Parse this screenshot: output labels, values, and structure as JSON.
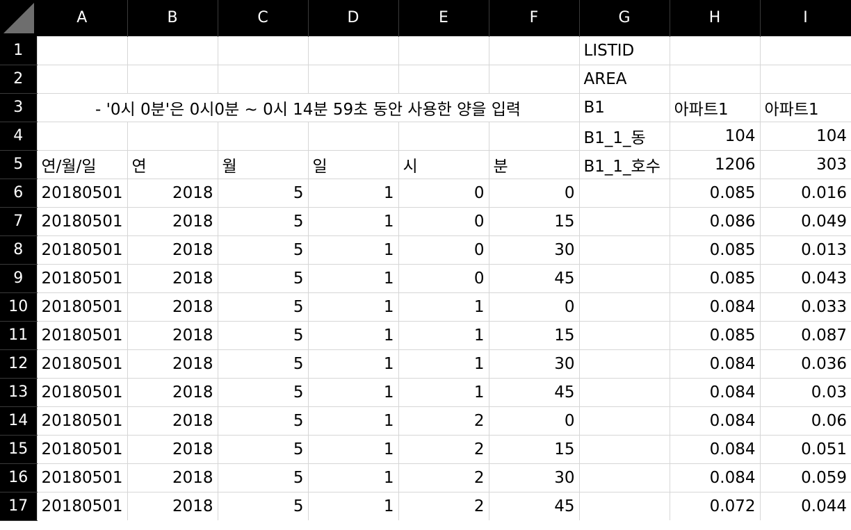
{
  "spreadsheet": {
    "columns": [
      "A",
      "B",
      "C",
      "D",
      "E",
      "F",
      "G",
      "H",
      "I"
    ],
    "rows": [
      {
        "num": "1",
        "cells": [
          "",
          "",
          "",
          "",
          "",
          "",
          "LISTID",
          "",
          ""
        ]
      },
      {
        "num": "2",
        "cells": [
          "",
          "",
          "",
          "",
          "",
          "",
          "AREA",
          "",
          ""
        ]
      },
      {
        "num": "3",
        "merged_text": "- '0시 0분'은 0시0분 ~ 0시 14분 59초 동안 사용한 양을 입력",
        "cells": [
          "B1",
          "아파트1",
          "아파트1"
        ]
      },
      {
        "num": "4",
        "cells": [
          "",
          "",
          "",
          "",
          "",
          "",
          "B1_1_동",
          "104",
          "104"
        ]
      },
      {
        "num": "5",
        "cells": [
          "연/월/일",
          "연",
          "월",
          "일",
          "시",
          "분",
          "B1_1_호수",
          "1206",
          "303"
        ]
      },
      {
        "num": "6",
        "cells": [
          "20180501",
          "2018",
          "5",
          "1",
          "0",
          "0",
          "",
          "0.085",
          "0.016"
        ]
      },
      {
        "num": "7",
        "cells": [
          "20180501",
          "2018",
          "5",
          "1",
          "0",
          "15",
          "",
          "0.086",
          "0.049"
        ]
      },
      {
        "num": "8",
        "cells": [
          "20180501",
          "2018",
          "5",
          "1",
          "0",
          "30",
          "",
          "0.085",
          "0.013"
        ]
      },
      {
        "num": "9",
        "cells": [
          "20180501",
          "2018",
          "5",
          "1",
          "0",
          "45",
          "",
          "0.085",
          "0.043"
        ]
      },
      {
        "num": "10",
        "cells": [
          "20180501",
          "2018",
          "5",
          "1",
          "1",
          "0",
          "",
          "0.084",
          "0.033"
        ]
      },
      {
        "num": "11",
        "cells": [
          "20180501",
          "2018",
          "5",
          "1",
          "1",
          "15",
          "",
          "0.085",
          "0.087"
        ]
      },
      {
        "num": "12",
        "cells": [
          "20180501",
          "2018",
          "5",
          "1",
          "1",
          "30",
          "",
          "0.084",
          "0.036"
        ]
      },
      {
        "num": "13",
        "cells": [
          "20180501",
          "2018",
          "5",
          "1",
          "1",
          "45",
          "",
          "0.084",
          "0.03"
        ]
      },
      {
        "num": "14",
        "cells": [
          "20180501",
          "2018",
          "5",
          "1",
          "2",
          "0",
          "",
          "0.084",
          "0.06"
        ]
      },
      {
        "num": "15",
        "cells": [
          "20180501",
          "2018",
          "5",
          "1",
          "2",
          "15",
          "",
          "0.084",
          "0.051"
        ]
      },
      {
        "num": "16",
        "cells": [
          "20180501",
          "2018",
          "5",
          "1",
          "2",
          "30",
          "",
          "0.084",
          "0.059"
        ]
      },
      {
        "num": "17",
        "cells": [
          "20180501",
          "2018",
          "5",
          "1",
          "2",
          "45",
          "",
          "0.072",
          "0.044"
        ]
      }
    ]
  }
}
